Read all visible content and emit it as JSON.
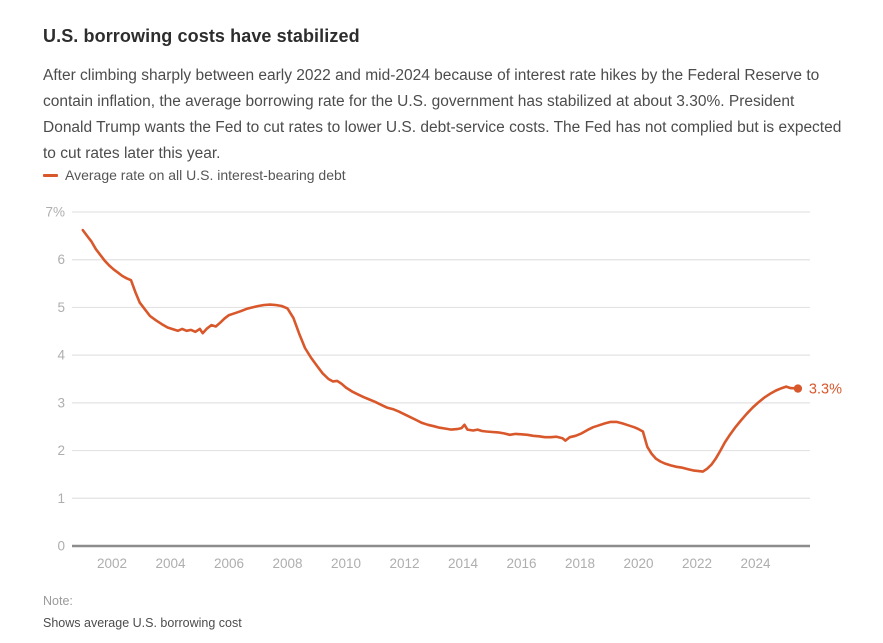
{
  "header": {
    "title": "U.S. borrowing costs have stabilized",
    "subtitle": "After climbing sharply between early 2022 and mid-2024 because of interest rate hikes by the Federal Reserve to contain inflation, the average borrowing rate for the U.S. government has stabilized at about 3.30%. President Donald Trump wants the Fed to cut rates to lower U.S. debt-service costs. The Fed has not complied but is expected to cut rates later this year."
  },
  "legend": {
    "label": "Average rate on all U.S. interest-bearing debt"
  },
  "note": {
    "label": "Note:",
    "text": "Shows average U.S. borrowing cost"
  },
  "chart_data": {
    "type": "line",
    "title": "U.S. borrowing costs have stabilized",
    "xlabel": "",
    "ylabel": "Average rate on all U.S. interest-bearing debt (%)",
    "xlim": [
      2000.7,
      2025.9
    ],
    "ylim": [
      0,
      7
    ],
    "grid": "horizontal",
    "legend_position": "top-left",
    "x_ticks": [
      2002,
      2004,
      2006,
      2008,
      2010,
      2012,
      2014,
      2016,
      2018,
      2020,
      2022,
      2024
    ],
    "x_tick_labels": [
      "2002",
      "2004",
      "2006",
      "2008",
      "2010",
      "2012",
      "2014",
      "2016",
      "2018",
      "2020",
      "2022",
      "2024"
    ],
    "y_ticks": [
      0,
      1,
      2,
      3,
      4,
      5,
      6,
      7
    ],
    "y_tick_labels": [
      "0",
      "1",
      "2",
      "3",
      "4",
      "5",
      "6",
      "7%"
    ],
    "end_label": "3.3%",
    "end_value": 3.3,
    "colors": {
      "line": "#d9582b",
      "end_label": "#d9582b",
      "grid": "#e3e3e3",
      "zero_axis": "#8c8c8c",
      "axis_text": "#aeaeae"
    },
    "series": [
      {
        "name": "Average rate on all U.S. interest-bearing debt",
        "color": "#d9582b",
        "points": [
          [
            2001.0,
            6.62
          ],
          [
            2001.15,
            6.5
          ],
          [
            2001.3,
            6.38
          ],
          [
            2001.45,
            6.22
          ],
          [
            2001.6,
            6.1
          ],
          [
            2001.75,
            5.98
          ],
          [
            2001.9,
            5.88
          ],
          [
            2002.05,
            5.8
          ],
          [
            2002.2,
            5.73
          ],
          [
            2002.35,
            5.66
          ],
          [
            2002.5,
            5.61
          ],
          [
            2002.65,
            5.57
          ],
          [
            2002.8,
            5.32
          ],
          [
            2002.95,
            5.1
          ],
          [
            2003.1,
            4.98
          ],
          [
            2003.3,
            4.82
          ],
          [
            2003.5,
            4.73
          ],
          [
            2003.7,
            4.65
          ],
          [
            2003.9,
            4.58
          ],
          [
            2004.1,
            4.54
          ],
          [
            2004.25,
            4.51
          ],
          [
            2004.4,
            4.55
          ],
          [
            2004.55,
            4.51
          ],
          [
            2004.7,
            4.53
          ],
          [
            2004.85,
            4.49
          ],
          [
            2005.0,
            4.55
          ],
          [
            2005.1,
            4.46
          ],
          [
            2005.25,
            4.56
          ],
          [
            2005.4,
            4.63
          ],
          [
            2005.55,
            4.6
          ],
          [
            2005.7,
            4.68
          ],
          [
            2005.85,
            4.77
          ],
          [
            2006.0,
            4.84
          ],
          [
            2006.2,
            4.88
          ],
          [
            2006.4,
            4.92
          ],
          [
            2006.6,
            4.97
          ],
          [
            2006.8,
            5.0
          ],
          [
            2007.0,
            5.03
          ],
          [
            2007.2,
            5.05
          ],
          [
            2007.4,
            5.06
          ],
          [
            2007.6,
            5.05
          ],
          [
            2007.8,
            5.03
          ],
          [
            2008.0,
            4.98
          ],
          [
            2008.2,
            4.78
          ],
          [
            2008.4,
            4.45
          ],
          [
            2008.6,
            4.15
          ],
          [
            2008.8,
            3.95
          ],
          [
            2009.0,
            3.78
          ],
          [
            2009.2,
            3.62
          ],
          [
            2009.4,
            3.5
          ],
          [
            2009.55,
            3.45
          ],
          [
            2009.7,
            3.46
          ],
          [
            2009.85,
            3.4
          ],
          [
            2010.0,
            3.32
          ],
          [
            2010.2,
            3.24
          ],
          [
            2010.4,
            3.18
          ],
          [
            2010.6,
            3.12
          ],
          [
            2010.8,
            3.07
          ],
          [
            2011.0,
            3.02
          ],
          [
            2011.2,
            2.96
          ],
          [
            2011.4,
            2.9
          ],
          [
            2011.6,
            2.87
          ],
          [
            2011.8,
            2.82
          ],
          [
            2012.0,
            2.76
          ],
          [
            2012.2,
            2.7
          ],
          [
            2012.4,
            2.64
          ],
          [
            2012.6,
            2.58
          ],
          [
            2012.8,
            2.54
          ],
          [
            2013.0,
            2.51
          ],
          [
            2013.2,
            2.48
          ],
          [
            2013.4,
            2.46
          ],
          [
            2013.6,
            2.44
          ],
          [
            2013.8,
            2.45
          ],
          [
            2013.95,
            2.47
          ],
          [
            2014.05,
            2.54
          ],
          [
            2014.15,
            2.44
          ],
          [
            2014.35,
            2.42
          ],
          [
            2014.5,
            2.44
          ],
          [
            2014.65,
            2.41
          ],
          [
            2014.8,
            2.4
          ],
          [
            2015.0,
            2.39
          ],
          [
            2015.2,
            2.38
          ],
          [
            2015.4,
            2.36
          ],
          [
            2015.6,
            2.33
          ],
          [
            2015.8,
            2.35
          ],
          [
            2016.0,
            2.34
          ],
          [
            2016.2,
            2.33
          ],
          [
            2016.4,
            2.31
          ],
          [
            2016.6,
            2.3
          ],
          [
            2016.8,
            2.28
          ],
          [
            2017.0,
            2.28
          ],
          [
            2017.2,
            2.29
          ],
          [
            2017.4,
            2.26
          ],
          [
            2017.5,
            2.21
          ],
          [
            2017.65,
            2.28
          ],
          [
            2017.85,
            2.31
          ],
          [
            2018.05,
            2.36
          ],
          [
            2018.25,
            2.43
          ],
          [
            2018.45,
            2.49
          ],
          [
            2018.65,
            2.53
          ],
          [
            2018.85,
            2.57
          ],
          [
            2019.05,
            2.6
          ],
          [
            2019.25,
            2.6
          ],
          [
            2019.45,
            2.57
          ],
          [
            2019.65,
            2.53
          ],
          [
            2019.85,
            2.49
          ],
          [
            2020.0,
            2.45
          ],
          [
            2020.15,
            2.4
          ],
          [
            2020.3,
            2.08
          ],
          [
            2020.45,
            1.93
          ],
          [
            2020.6,
            1.83
          ],
          [
            2020.75,
            1.77
          ],
          [
            2020.9,
            1.73
          ],
          [
            2021.1,
            1.69
          ],
          [
            2021.3,
            1.66
          ],
          [
            2021.5,
            1.64
          ],
          [
            2021.7,
            1.61
          ],
          [
            2021.9,
            1.58
          ],
          [
            2022.05,
            1.57
          ],
          [
            2022.2,
            1.56
          ],
          [
            2022.35,
            1.62
          ],
          [
            2022.5,
            1.71
          ],
          [
            2022.65,
            1.84
          ],
          [
            2022.8,
            2.0
          ],
          [
            2022.95,
            2.17
          ],
          [
            2023.1,
            2.31
          ],
          [
            2023.3,
            2.48
          ],
          [
            2023.5,
            2.63
          ],
          [
            2023.7,
            2.77
          ],
          [
            2023.9,
            2.9
          ],
          [
            2024.1,
            3.01
          ],
          [
            2024.3,
            3.11
          ],
          [
            2024.5,
            3.19
          ],
          [
            2024.7,
            3.26
          ],
          [
            2024.9,
            3.31
          ],
          [
            2025.05,
            3.34
          ],
          [
            2025.2,
            3.31
          ],
          [
            2025.45,
            3.3
          ]
        ]
      }
    ]
  }
}
